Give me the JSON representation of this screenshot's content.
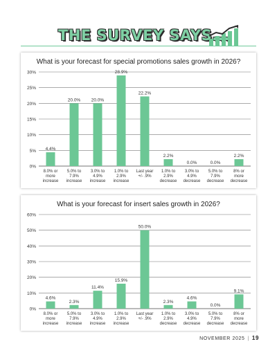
{
  "header": {
    "title": "THE SURVEY SAYS...",
    "icon": "bar-chart-growth-icon"
  },
  "colors": {
    "bar": "#6cc795",
    "title_fill": "#7fd0a4",
    "grid": "#555555"
  },
  "chart_data": [
    {
      "type": "bar",
      "title": "What is your forecast for special promotions sales growth in 2026?",
      "categories": [
        [
          "8.0% or",
          "more",
          "increase"
        ],
        [
          "5.0% to",
          "7.9%",
          "increase"
        ],
        [
          "3.0% to",
          "4.9%",
          "increase"
        ],
        [
          "1.0% to",
          "2.9%",
          "increase"
        ],
        [
          "Last year",
          "+/- .9%"
        ],
        [
          "1.0% to",
          "2.9%",
          "decrease"
        ],
        [
          "3.0% to",
          "4.9%",
          "decrease"
        ],
        [
          "5.0% to",
          "7.9%",
          "decrease"
        ],
        [
          "8% or",
          "more",
          "decrease"
        ]
      ],
      "values": [
        4.4,
        20.0,
        20.0,
        28.9,
        22.2,
        2.2,
        0.0,
        0.0,
        2.2
      ],
      "value_labels": [
        "4.4%",
        "20.0%",
        "20.0%",
        "28.9%",
        "22.2%",
        "2.2%",
        "0.0%",
        "0.0%",
        "2.2%"
      ],
      "yticks": [
        "0%",
        "5%",
        "10%",
        "15%",
        "20%",
        "25%",
        "30%"
      ],
      "ylim": [
        0,
        30
      ],
      "grid": true
    },
    {
      "type": "bar",
      "title": "What is your forecast for insert sales growth in 2026?",
      "categories": [
        [
          "8.0% or",
          "more",
          "increase"
        ],
        [
          "5.0% to",
          "7.9%",
          "increase"
        ],
        [
          "3.0% to",
          "4.9%",
          "increase"
        ],
        [
          "1.0% to",
          "2.9%",
          "increase"
        ],
        [
          "Last year",
          "+/- .9%"
        ],
        [
          "1.0% to",
          "2.9%",
          "decrease"
        ],
        [
          "3.0% to",
          "4.9%",
          "decrease"
        ],
        [
          "5.0% to",
          "7.9%",
          "decrease"
        ],
        [
          "8% or",
          "more",
          "decrease"
        ]
      ],
      "values": [
        4.6,
        2.3,
        11.4,
        15.9,
        50.0,
        2.3,
        4.6,
        0.0,
        9.1
      ],
      "value_labels": [
        "4.6%",
        "2.3%",
        "11.4%",
        "15.9%",
        "50.0%",
        "2.3%",
        "4.6%",
        "0.0%",
        "9.1%"
      ],
      "yticks": [
        "0%",
        "10%",
        "20%",
        "30%",
        "40%",
        "50%",
        "60%"
      ],
      "ylim": [
        0,
        60
      ],
      "grid": true
    }
  ],
  "footer": {
    "issue": "NOVEMBER 2025",
    "separator": "|",
    "page": "19"
  }
}
